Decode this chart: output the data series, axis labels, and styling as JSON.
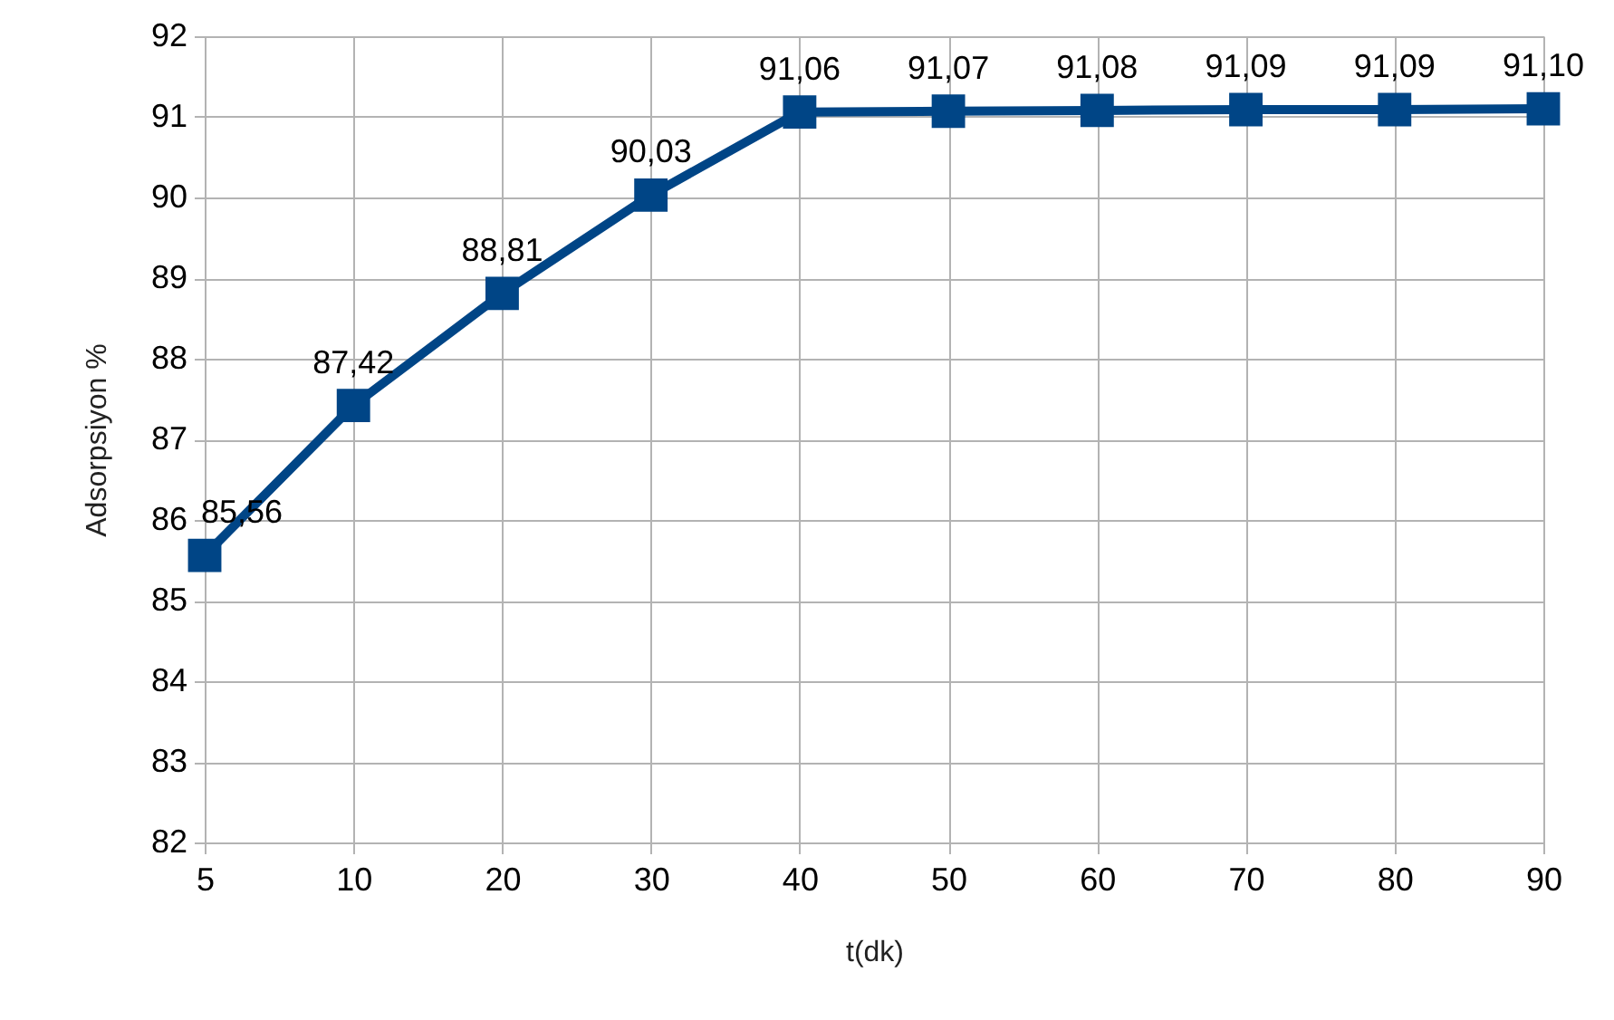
{
  "chart_data": {
    "type": "line",
    "xlabel": "t(dk)",
    "ylabel": "Adsorpsiyon %",
    "categories": [
      "5",
      "10",
      "20",
      "30",
      "40",
      "50",
      "60",
      "70",
      "80",
      "90"
    ],
    "values": [
      85.56,
      87.42,
      88.81,
      90.03,
      91.06,
      91.07,
      91.08,
      91.09,
      91.09,
      91.1
    ],
    "value_labels": [
      "85,56",
      "87,42",
      "88,81",
      "90,03",
      "91,06",
      "91,07",
      "91,08",
      "91,09",
      "91,09",
      "91,10"
    ],
    "color": "#004586",
    "ylim": [
      82,
      92
    ],
    "yticks": [
      82,
      83,
      84,
      85,
      86,
      87,
      88,
      89,
      90,
      91,
      92
    ],
    "grid": true,
    "marker": "square",
    "line_style": "solid"
  }
}
